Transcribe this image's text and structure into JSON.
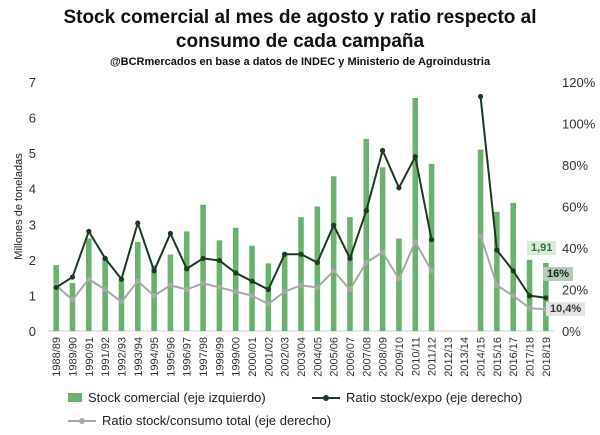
{
  "chart_data": {
    "type": "bar",
    "title_line1": "Stock comercial al mes de agosto y ratio respecto al",
    "title_line2": "consumo de cada campaña",
    "subtitle": "@BCRmercados en base a datos de INDEC y Ministerio de Agroindustria",
    "ylabel": "Millones de toneladas",
    "ylim": [
      0,
      7
    ],
    "y2lim": [
      0,
      1.2
    ],
    "yticks": [
      "0",
      "1",
      "2",
      "3",
      "4",
      "5",
      "6",
      "7"
    ],
    "y2ticks": [
      "0%",
      "20%",
      "40%",
      "60%",
      "80%",
      "100%",
      "120%"
    ],
    "categories": [
      "1988/89",
      "1989/90",
      "1990/91",
      "1991/92",
      "1992/93",
      "1993/94",
      "1994/95",
      "1995/96",
      "1996/97",
      "1997/98",
      "1998/99",
      "1999/00",
      "2000/01",
      "2001/02",
      "2002/03",
      "2003/04",
      "2004/05",
      "2005/06",
      "2006/07",
      "2007/08",
      "2008/09",
      "2009/10",
      "2010/11",
      "2011/12",
      "2012/13",
      "2013/14",
      "2014/15",
      "2015/16",
      "2016/17",
      "2017/18",
      "2018/19"
    ],
    "series": [
      {
        "name": "Stock comercial (eje izquierdo)",
        "kind": "bar",
        "color": "#6ab06e",
        "values": [
          1.85,
          1.35,
          2.6,
          2.05,
          1.45,
          2.5,
          1.85,
          2.15,
          2.8,
          3.55,
          2.55,
          2.9,
          2.4,
          1.9,
          2.2,
          3.2,
          3.5,
          4.35,
          3.2,
          5.4,
          4.6,
          2.6,
          6.55,
          4.7,
          null,
          null,
          5.1,
          3.35,
          3.6,
          2.0,
          1.91
        ]
      },
      {
        "name": "Ratio stock/expo (eje derecho)",
        "kind": "line",
        "color": "#1f3a24",
        "values": [
          0.21,
          0.26,
          0.48,
          0.35,
          0.25,
          0.52,
          0.29,
          0.47,
          0.3,
          0.35,
          0.34,
          0.28,
          0.24,
          0.2,
          0.37,
          0.37,
          0.33,
          0.51,
          0.35,
          0.58,
          0.87,
          0.69,
          0.84,
          0.44,
          null,
          null,
          1.13,
          0.39,
          0.29,
          0.17,
          0.16
        ]
      },
      {
        "name": "Ratio stock/consumo total (eje derecho)",
        "kind": "line",
        "color": "#a8a8a8",
        "values": [
          0.22,
          0.15,
          0.25,
          0.2,
          0.14,
          0.24,
          0.17,
          0.22,
          0.2,
          0.23,
          0.21,
          0.19,
          0.17,
          0.13,
          0.19,
          0.22,
          0.21,
          0.29,
          0.2,
          0.33,
          0.38,
          0.25,
          0.43,
          0.29,
          null,
          null,
          0.46,
          0.22,
          0.17,
          0.11,
          0.104
        ]
      }
    ],
    "annotations": [
      {
        "text": "1,91",
        "bg": "#d9ecd9",
        "color": "#2f6f3a"
      },
      {
        "text": "16%",
        "bg": "#b9c9bb",
        "color": "#0d2a14"
      },
      {
        "text": "10,4%",
        "bg": "#e4e4e4",
        "color": "#333333"
      }
    ],
    "legend_position": "bottom",
    "grid": false
  }
}
